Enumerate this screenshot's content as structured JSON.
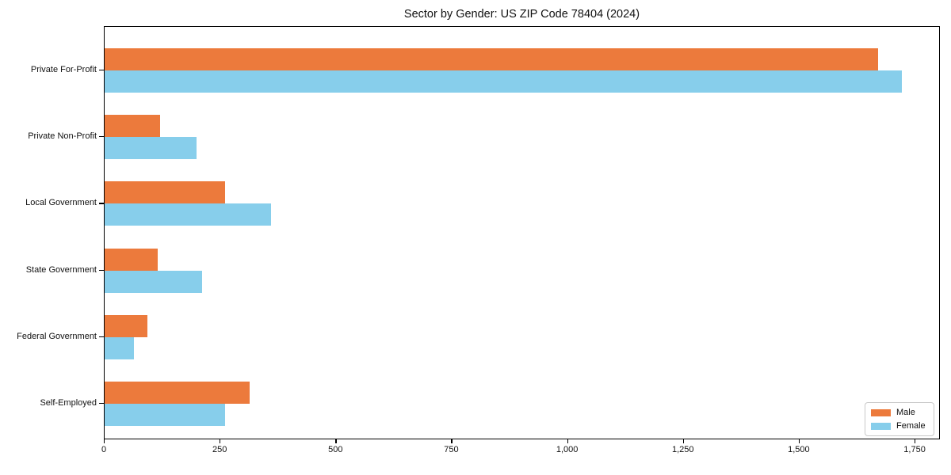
{
  "chart_data": {
    "type": "bar",
    "orientation": "horizontal",
    "title": "Sector by Gender: US ZIP Code 78404 (2024)",
    "categories": [
      "Private For-Profit",
      "Private Non-Profit",
      "Local Government",
      "State Government",
      "Federal Government",
      "Self-Employed"
    ],
    "series": [
      {
        "name": "Male",
        "color": "#EC7A3C",
        "values": [
          1670,
          120,
          260,
          114,
          92,
          313
        ]
      },
      {
        "name": "Female",
        "color": "#87CEEB",
        "values": [
          1720,
          198,
          360,
          210,
          64,
          260
        ]
      }
    ],
    "xlabel": "",
    "ylabel": "",
    "xlim": [
      0,
      1805
    ],
    "xticks": [
      0,
      250,
      500,
      750,
      1000,
      1250,
      1500,
      1750
    ],
    "xtick_labels": [
      "0",
      "250",
      "500",
      "750",
      "1,000",
      "1,250",
      "1,500",
      "1,750"
    ],
    "grid": false,
    "legend_position": "lower right",
    "legend_entries": [
      "Male",
      "Female"
    ]
  }
}
